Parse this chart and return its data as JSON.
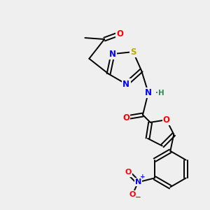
{
  "bg_color": "#efefef",
  "bond_color": "#000000",
  "atom_colors": {
    "O": "#ff0000",
    "N": "#0000ff",
    "S": "#bbaa00",
    "NH": "#2e8b57",
    "C": "#000000"
  },
  "lw": 1.4,
  "fs": 8.5
}
